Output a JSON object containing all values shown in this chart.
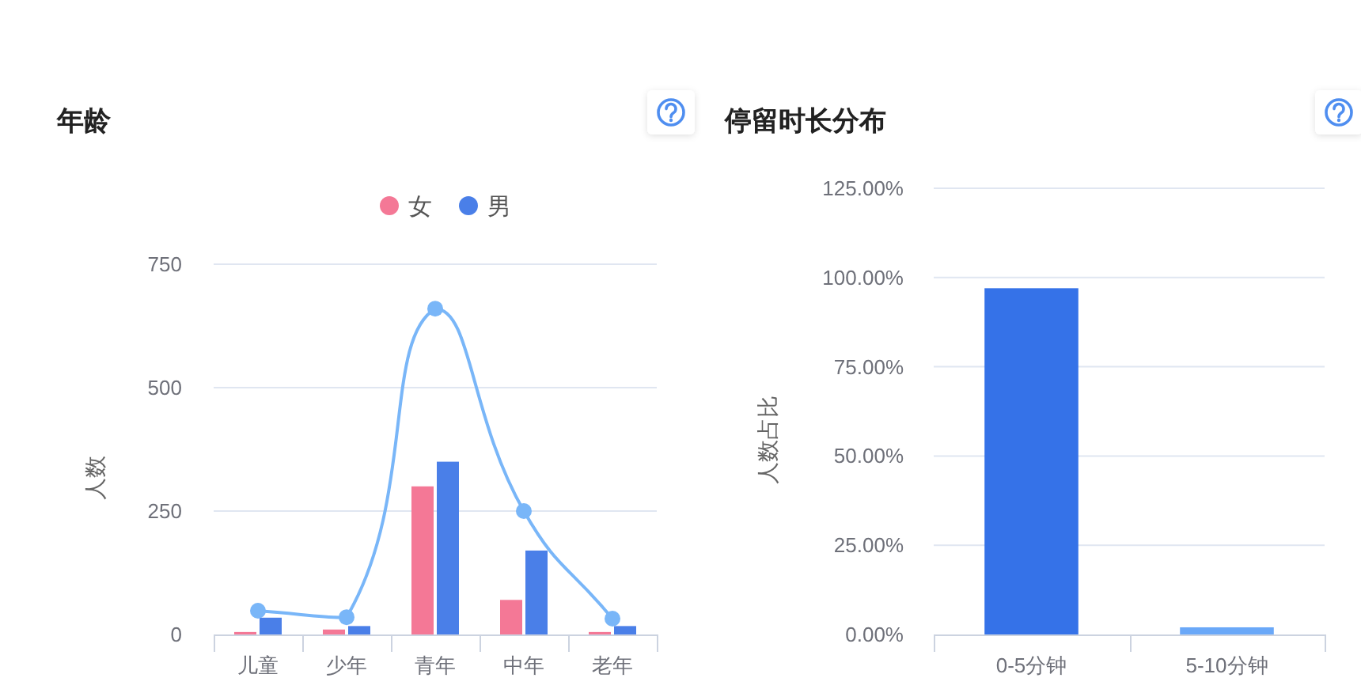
{
  "chart_data": [
    {
      "type": "bar",
      "title": "年龄",
      "categories": [
        "儿童",
        "少年",
        "青年",
        "中年",
        "老年"
      ],
      "series": [
        {
          "name": "女",
          "color": "#f47896",
          "values": [
            5,
            10,
            300,
            70,
            5
          ]
        },
        {
          "name": "男",
          "color": "#4a7fe8",
          "values": [
            34,
            17,
            350,
            170,
            17
          ]
        },
        {
          "type": "line",
          "color": "#79b6f8",
          "values": [
            48,
            35,
            660,
            250,
            32
          ]
        }
      ],
      "ylabel": "人数",
      "ylim": [
        0,
        750
      ],
      "yticks": [
        0,
        250,
        500,
        750
      ],
      "grid": "y",
      "legend": "top",
      "marker": "circle"
    },
    {
      "type": "bar",
      "title": "停留时长分布",
      "categories": [
        "0-5分钟",
        "5-10分钟"
      ],
      "values": [
        97,
        2
      ],
      "colors": [
        "#3572e8",
        "#6aa8f8"
      ],
      "ylabel": "人数占比",
      "ylim": [
        0,
        125
      ],
      "yticks": [
        {
          "value": 0,
          "label": "0.00%"
        },
        {
          "value": 25,
          "label": "25.00%"
        },
        {
          "value": 50,
          "label": "50.00%"
        },
        {
          "value": 75,
          "label": "75.00%"
        },
        {
          "value": 100,
          "label": "100.00%"
        },
        {
          "value": 125,
          "label": "125.00%"
        }
      ],
      "grid": "y"
    }
  ]
}
